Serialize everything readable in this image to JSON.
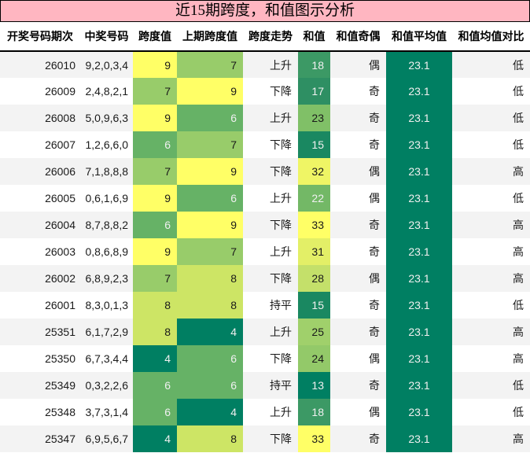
{
  "title": "近15期跨度，和值图示分析",
  "columns": [
    "开奖号码期次",
    "中奖号码",
    "跨度值",
    "上期跨度值",
    "跨度走势",
    "和值",
    "和值奇偶",
    "和值平均值",
    "和值均值对比"
  ],
  "colors": {
    "title_bg": "#ffb6c1",
    "row_odd": "#f3f3f3",
    "row_even": "#ffffff",
    "avg_bg": "#007f62",
    "span_9": "#ffff66",
    "span_8": "#cde565",
    "span_7": "#98cc6a",
    "span_6": "#66b266",
    "span_4": "#007f62"
  },
  "rows": [
    {
      "period": "26010",
      "numbers": "9,2,0,3,4",
      "span": "9",
      "prev_span": "7",
      "trend": "上升",
      "sum": "18",
      "parity": "偶",
      "avg": "23.1",
      "compare": "低"
    },
    {
      "period": "26009",
      "numbers": "2,4,8,2,1",
      "span": "7",
      "prev_span": "9",
      "trend": "下降",
      "sum": "17",
      "parity": "奇",
      "avg": "23.1",
      "compare": "低"
    },
    {
      "period": "26008",
      "numbers": "5,0,9,6,3",
      "span": "9",
      "prev_span": "6",
      "trend": "上升",
      "sum": "23",
      "parity": "奇",
      "avg": "23.1",
      "compare": "低"
    },
    {
      "period": "26007",
      "numbers": "1,2,6,6,0",
      "span": "6",
      "prev_span": "7",
      "trend": "下降",
      "sum": "15",
      "parity": "奇",
      "avg": "23.1",
      "compare": "低"
    },
    {
      "period": "26006",
      "numbers": "7,1,8,8,8",
      "span": "7",
      "prev_span": "9",
      "trend": "下降",
      "sum": "32",
      "parity": "偶",
      "avg": "23.1",
      "compare": "高"
    },
    {
      "period": "26005",
      "numbers": "0,6,1,6,9",
      "span": "9",
      "prev_span": "6",
      "trend": "上升",
      "sum": "22",
      "parity": "偶",
      "avg": "23.1",
      "compare": "低"
    },
    {
      "period": "26004",
      "numbers": "8,7,8,8,2",
      "span": "6",
      "prev_span": "9",
      "trend": "下降",
      "sum": "33",
      "parity": "奇",
      "avg": "23.1",
      "compare": "高"
    },
    {
      "period": "26003",
      "numbers": "0,8,6,8,9",
      "span": "9",
      "prev_span": "7",
      "trend": "上升",
      "sum": "31",
      "parity": "奇",
      "avg": "23.1",
      "compare": "高"
    },
    {
      "period": "26002",
      "numbers": "6,8,9,2,3",
      "span": "7",
      "prev_span": "8",
      "trend": "下降",
      "sum": "28",
      "parity": "偶",
      "avg": "23.1",
      "compare": "高"
    },
    {
      "period": "26001",
      "numbers": "8,3,0,1,3",
      "span": "8",
      "prev_span": "8",
      "trend": "持平",
      "sum": "15",
      "parity": "奇",
      "avg": "23.1",
      "compare": "低"
    },
    {
      "period": "25351",
      "numbers": "6,1,7,2,9",
      "span": "8",
      "prev_span": "4",
      "trend": "上升",
      "sum": "25",
      "parity": "奇",
      "avg": "23.1",
      "compare": "高"
    },
    {
      "period": "25350",
      "numbers": "6,7,3,4,4",
      "span": "4",
      "prev_span": "6",
      "trend": "下降",
      "sum": "24",
      "parity": "偶",
      "avg": "23.1",
      "compare": "高"
    },
    {
      "period": "25349",
      "numbers": "0,3,2,2,6",
      "span": "6",
      "prev_span": "6",
      "trend": "持平",
      "sum": "13",
      "parity": "奇",
      "avg": "23.1",
      "compare": "低"
    },
    {
      "period": "25348",
      "numbers": "3,7,3,1,4",
      "span": "6",
      "prev_span": "4",
      "trend": "上升",
      "sum": "18",
      "parity": "偶",
      "avg": "23.1",
      "compare": "低"
    },
    {
      "period": "25347",
      "numbers": "6,9,5,6,7",
      "span": "4",
      "prev_span": "8",
      "trend": "下降",
      "sum": "33",
      "parity": "奇",
      "avg": "23.1",
      "compare": "高"
    }
  ],
  "sum_colors": {
    "13": "#007f62",
    "15": "#1a8861",
    "17": "#2e8f63",
    "18": "#3c9965",
    "22": "#73b866",
    "23": "#80c067",
    "24": "#93c969",
    "25": "#a0d06b",
    "28": "#c4e06a",
    "31": "#e3ef67",
    "32": "#eff565",
    "33": "#ffff66"
  }
}
